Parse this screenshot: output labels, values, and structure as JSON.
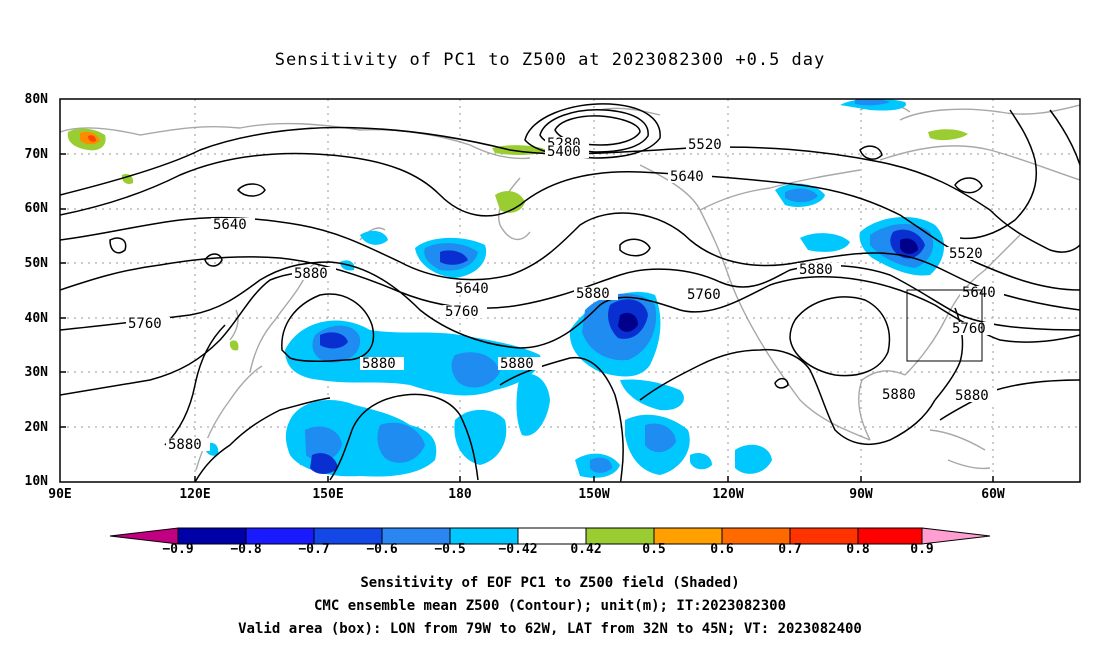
{
  "title": "Sensitivity of PC1 to Z500 at 2023082300 +0.5 day",
  "lat_labels": [
    "80N",
    "70N",
    "60N",
    "50N",
    "40N",
    "30N",
    "20N",
    "10N"
  ],
  "lon_labels": [
    "90E",
    "120E",
    "150E",
    "180",
    "150W",
    "120W",
    "90W",
    "60W"
  ],
  "contour_labels": [
    "5280",
    "5400",
    "5520",
    "5640",
    "5640",
    "5760",
    "5880",
    "5640",
    "5760",
    "5880",
    "5880",
    "5760",
    "5880",
    "5520",
    "5640",
    "5760",
    "5880",
    "5880",
    "5880"
  ],
  "colorbar": {
    "labels": [
      "-0.9",
      "-0.8",
      "-0.7",
      "-0.6",
      "-0.5",
      "-0.42",
      "0.42",
      "0.5",
      "0.6",
      "0.7",
      "0.8",
      "0.9"
    ],
    "colors": [
      "#9b0fa0",
      "#0000a0",
      "#1a1aff",
      "#1240e0",
      "#2a86f0",
      "#00c8ff",
      "#ffffff",
      "#9acd32",
      "#ffa000",
      "#ff6600",
      "#ff3300",
      "#ff0000",
      "#ff80c0"
    ]
  },
  "footer": {
    "line1": "Sensitivity of EOF PC1 to Z500 field (Shaded)",
    "line2": "CMC ensemble mean Z500 (Contour); unit(m); IT:2023082300",
    "line3": "Valid area (box): LON from 79W to 62W, LAT from 32N to 45N; VT: 2023082400"
  }
}
